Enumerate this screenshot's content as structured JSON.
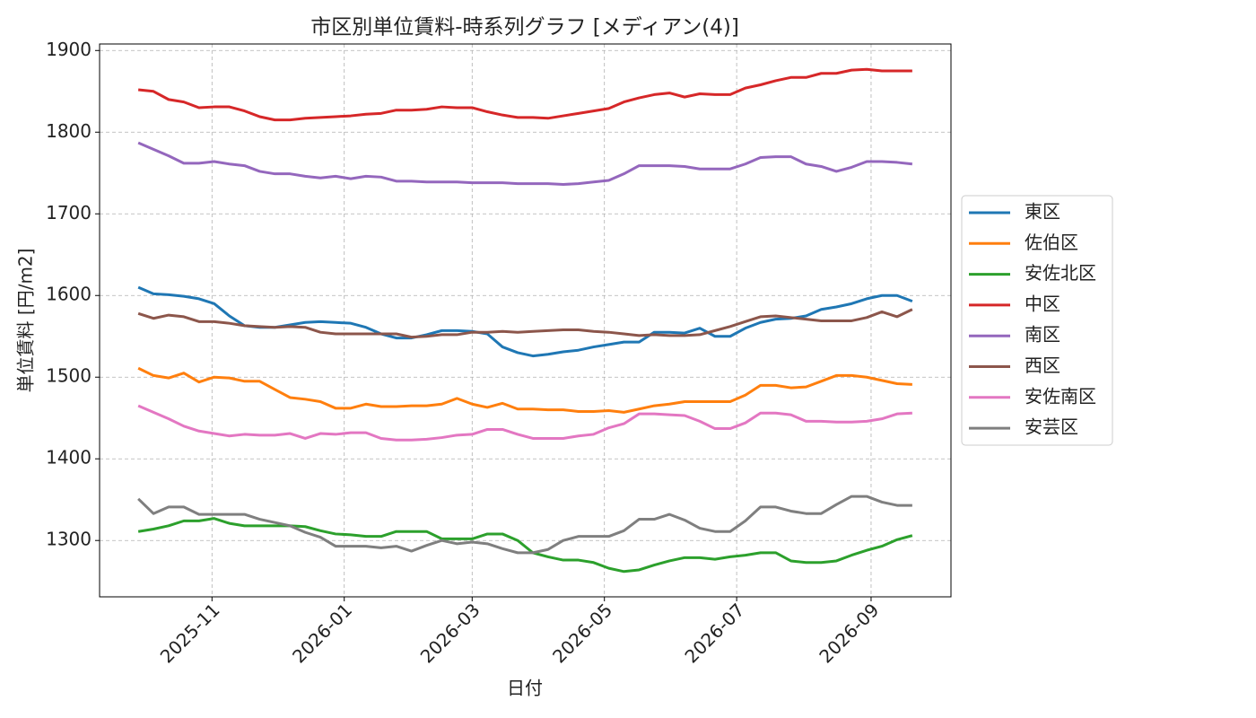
{
  "chart_data": {
    "type": "line",
    "title": "市区別単位賃料-時系列グラフ [メディアン(4)]",
    "x_label": "日付",
    "y_label": "単位賃料 [円/m2]",
    "x": [
      0,
      1,
      2,
      3,
      4,
      5,
      6,
      7,
      8,
      9,
      10,
      11,
      12,
      13,
      14,
      15,
      16,
      17,
      18,
      19,
      20,
      21,
      22,
      23,
      24,
      25,
      26,
      27,
      28,
      29,
      30,
      31,
      32,
      33,
      34,
      35,
      36,
      37,
      38,
      39,
      40,
      41,
      42,
      43,
      44,
      45,
      46,
      47,
      48,
      49,
      50,
      51
    ],
    "xlim": [
      -2.55,
      53.55
    ],
    "xticks": [
      {
        "value": 4.857,
        "label": "2025-11"
      },
      {
        "value": 13.571,
        "label": "2026-01"
      },
      {
        "value": 22,
        "label": "2026-03"
      },
      {
        "value": 30.714,
        "label": "2026-05"
      },
      {
        "value": 39.429,
        "label": "2026-07"
      },
      {
        "value": 48.286,
        "label": "2026-09"
      }
    ],
    "ylim": [
      1231,
      1908
    ],
    "yticks": [
      1300,
      1400,
      1500,
      1600,
      1700,
      1800,
      1900
    ],
    "grid": true,
    "legend": "outside right",
    "series": [
      {
        "name": "東区",
        "color": "#1f77b4",
        "values": [
          1610,
          1602,
          1601,
          1599,
          1596,
          1590,
          1575,
          1563,
          1561,
          1561,
          1564,
          1567,
          1568,
          1567,
          1566,
          1561,
          1553,
          1548,
          1548,
          1552,
          1557,
          1557,
          1556,
          1553,
          1537,
          1530,
          1526,
          1528,
          1531,
          1533,
          1537,
          1540,
          1543,
          1543,
          1555,
          1555,
          1554,
          1560,
          1550,
          1550,
          1560,
          1567,
          1571,
          1572,
          1575,
          1583,
          1586,
          1590,
          1596,
          1600,
          1600,
          1593
        ]
      },
      {
        "name": "佐伯区",
        "color": "#ff7f0e",
        "values": [
          1511,
          1502,
          1499,
          1505,
          1494,
          1500,
          1499,
          1495,
          1495,
          1485,
          1475,
          1473,
          1470,
          1462,
          1462,
          1467,
          1464,
          1464,
          1465,
          1465,
          1467,
          1474,
          1467,
          1463,
          1468,
          1461,
          1461,
          1460,
          1460,
          1458,
          1458,
          1459,
          1457,
          1461,
          1465,
          1467,
          1470,
          1470,
          1470,
          1470,
          1478,
          1490,
          1490,
          1487,
          1488,
          1495,
          1502,
          1502,
          1500,
          1496,
          1492,
          1491
        ]
      },
      {
        "name": "安佐北区",
        "color": "#2ca02c",
        "values": [
          1311,
          1314,
          1318,
          1324,
          1324,
          1327,
          1321,
          1318,
          1318,
          1318,
          1318,
          1317,
          1312,
          1308,
          1307,
          1305,
          1305,
          1311,
          1311,
          1311,
          1302,
          1302,
          1302,
          1308,
          1308,
          1300,
          1285,
          1280,
          1276,
          1276,
          1273,
          1266,
          1262,
          1264,
          1270,
          1275,
          1279,
          1279,
          1277,
          1280,
          1282,
          1285,
          1285,
          1275,
          1273,
          1273,
          1275,
          1282,
          1288,
          1293,
          1301,
          1306
        ]
      },
      {
        "name": "中区",
        "color": "#d62728",
        "values": [
          1852,
          1850,
          1840,
          1837,
          1830,
          1831,
          1831,
          1826,
          1819,
          1815,
          1815,
          1817,
          1818,
          1819,
          1820,
          1822,
          1823,
          1827,
          1827,
          1828,
          1831,
          1830,
          1830,
          1825,
          1821,
          1818,
          1818,
          1817,
          1820,
          1823,
          1826,
          1829,
          1837,
          1842,
          1846,
          1848,
          1843,
          1847,
          1846,
          1846,
          1854,
          1858,
          1863,
          1867,
          1867,
          1872,
          1872,
          1876,
          1877,
          1875,
          1875,
          1875
        ]
      },
      {
        "name": "南区",
        "color": "#9467bd",
        "values": [
          1787,
          1779,
          1771,
          1762,
          1762,
          1764,
          1761,
          1759,
          1752,
          1749,
          1749,
          1746,
          1744,
          1746,
          1743,
          1746,
          1745,
          1740,
          1740,
          1739,
          1739,
          1739,
          1738,
          1738,
          1738,
          1737,
          1737,
          1737,
          1736,
          1737,
          1739,
          1741,
          1749,
          1759,
          1759,
          1759,
          1758,
          1755,
          1755,
          1755,
          1761,
          1769,
          1770,
          1770,
          1761,
          1758,
          1752,
          1757,
          1764,
          1764,
          1763,
          1761
        ]
      },
      {
        "name": "西区",
        "color": "#8c564b",
        "values": [
          1578,
          1572,
          1576,
          1574,
          1568,
          1568,
          1566,
          1563,
          1562,
          1561,
          1562,
          1561,
          1555,
          1553,
          1553,
          1553,
          1553,
          1553,
          1549,
          1550,
          1552,
          1552,
          1555,
          1555,
          1556,
          1555,
          1556,
          1557,
          1558,
          1558,
          1556,
          1555,
          1553,
          1551,
          1552,
          1551,
          1551,
          1552,
          1557,
          1562,
          1568,
          1574,
          1575,
          1573,
          1571,
          1569,
          1569,
          1569,
          1573,
          1580,
          1574,
          1583
        ]
      },
      {
        "name": "安佐南区",
        "color": "#e377c2",
        "values": [
          1465,
          1457,
          1449,
          1440,
          1434,
          1431,
          1428,
          1430,
          1429,
          1429,
          1431,
          1425,
          1431,
          1430,
          1432,
          1432,
          1425,
          1423,
          1423,
          1424,
          1426,
          1429,
          1430,
          1436,
          1436,
          1430,
          1425,
          1425,
          1425,
          1428,
          1430,
          1438,
          1443,
          1455,
          1455,
          1454,
          1453,
          1446,
          1437,
          1437,
          1444,
          1456,
          1456,
          1454,
          1446,
          1446,
          1445,
          1445,
          1446,
          1449,
          1455,
          1456
        ]
      },
      {
        "name": "安芸区",
        "color": "#7f7f7f",
        "values": [
          1351,
          1333,
          1341,
          1341,
          1332,
          1332,
          1332,
          1332,
          1326,
          1322,
          1318,
          1310,
          1304,
          1293,
          1293,
          1293,
          1291,
          1293,
          1287,
          1294,
          1300,
          1296,
          1298,
          1296,
          1290,
          1285,
          1285,
          1289,
          1300,
          1305,
          1305,
          1305,
          1312,
          1326,
          1326,
          1332,
          1325,
          1315,
          1311,
          1311,
          1324,
          1341,
          1341,
          1336,
          1333,
          1333,
          1344,
          1354,
          1354,
          1347,
          1343,
          1343
        ]
      }
    ]
  }
}
